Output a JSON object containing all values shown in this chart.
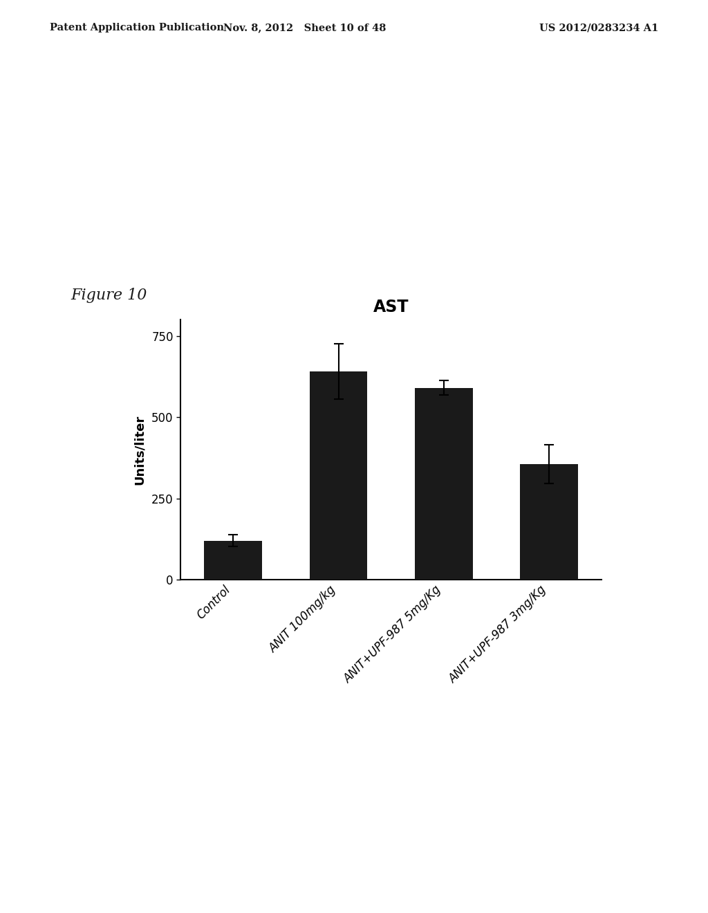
{
  "title": "AST",
  "ylabel": "Units/liter",
  "categories": [
    "Control",
    "ANIT 100mg/kg",
    "ANIT+UPF-987 5mg/Kg",
    "ANIT+UPF-987 3mg/Kg"
  ],
  "values": [
    120,
    640,
    590,
    355
  ],
  "errors": [
    18,
    85,
    22,
    60
  ],
  "bar_color": "#1a1a1a",
  "bar_width": 0.55,
  "ylim": [
    0,
    800
  ],
  "yticks": [
    0,
    250,
    500,
    750
  ],
  "background_color": "#ffffff",
  "header_left": "Patent Application Publication",
  "header_mid": "Nov. 8, 2012   Sheet 10 of 48",
  "header_right": "US 2012/0283234 A1",
  "figure_label": "Figure 10",
  "title_fontsize": 17,
  "ylabel_fontsize": 13,
  "tick_fontsize": 12,
  "header_fontsize": 10.5,
  "fig_label_fontsize": 16
}
